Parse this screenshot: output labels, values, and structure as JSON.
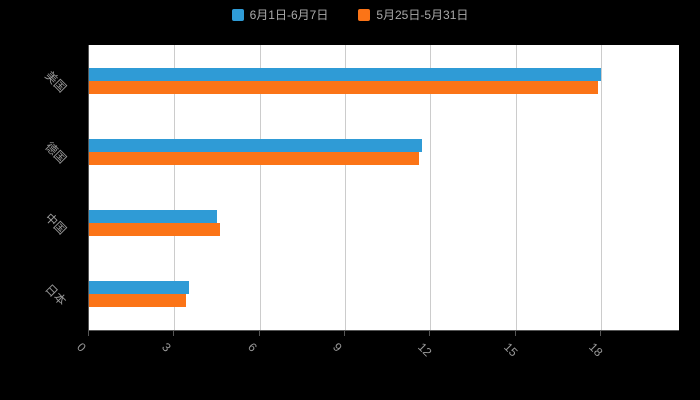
{
  "legend": {
    "items": [
      {
        "label": "6月1日-6月7日",
        "color": "#2f9bd6"
      },
      {
        "label": "5月25日-5月31日",
        "color": "#fb7417"
      }
    ]
  },
  "chart_data": {
    "type": "bar",
    "orientation": "horizontal",
    "title": "",
    "xlabel": "",
    "ylabel": "",
    "categories": [
      "美国",
      "德国",
      "中国",
      "日本"
    ],
    "series": [
      {
        "name": "6月1日-6月7日",
        "color": "#2f9bd6",
        "values": [
          18.0,
          11.7,
          4.5,
          3.5
        ]
      },
      {
        "name": "5月25日-5月31日",
        "color": "#fb7417",
        "values": [
          17.9,
          11.6,
          4.6,
          3.4
        ]
      }
    ],
    "xlim": [
      0,
      18
    ],
    "xticks": [
      0,
      3,
      6,
      9,
      12,
      15,
      18
    ],
    "grid": true,
    "legend_position": "top"
  },
  "colors": {
    "page_background": "#000000",
    "plot_background": "#ffffff",
    "gridline": "#cccccc",
    "axis_line": "#555555",
    "label_text": "#999999"
  }
}
